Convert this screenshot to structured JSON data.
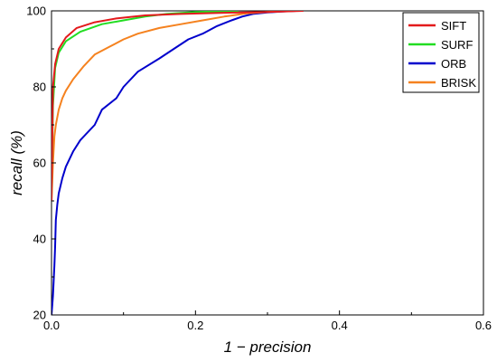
{
  "chart_data": {
    "type": "line",
    "title": "",
    "xlabel": "1 − precision",
    "ylabel": "recall (%)",
    "xlim": [
      0,
      0.6
    ],
    "ylim": [
      20,
      100
    ],
    "xticks": [
      0,
      0.2,
      0.4,
      0.6
    ],
    "xtick_labels": [
      "0.0",
      "0.2",
      "0.4",
      "0.6"
    ],
    "yticks": [
      20,
      40,
      60,
      80,
      100
    ],
    "ytick_labels": [
      "20",
      "40",
      "60",
      "80",
      "100"
    ],
    "grid": false,
    "legend_position": "top-right",
    "series": [
      {
        "name": "SIFT",
        "color": "#e31a1c",
        "x": [
          0,
          0.002,
          0.005,
          0.01,
          0.02,
          0.035,
          0.06,
          0.09,
          0.13,
          0.18,
          0.24,
          0.3,
          0.35
        ],
        "y": [
          50,
          80,
          86,
          90,
          93,
          95.5,
          97,
          98,
          98.8,
          99.2,
          99.5,
          99.7,
          100
        ]
      },
      {
        "name": "SURF",
        "color": "#22dd22",
        "x": [
          0,
          0.002,
          0.005,
          0.01,
          0.02,
          0.04,
          0.07,
          0.1,
          0.13,
          0.16,
          0.2,
          0.26
        ],
        "y": [
          50,
          75,
          85,
          89,
          92,
          94.5,
          96.5,
          97.5,
          98.5,
          99.2,
          99.7,
          100
        ]
      },
      {
        "name": "ORB",
        "color": "#0000cc",
        "x": [
          0,
          0.002,
          0.003,
          0.004,
          0.005,
          0.006,
          0.008,
          0.01,
          0.015,
          0.02,
          0.03,
          0.04,
          0.06,
          0.07,
          0.09,
          0.1,
          0.12,
          0.15,
          0.17,
          0.19,
          0.21,
          0.23,
          0.25,
          0.265,
          0.28,
          0.3,
          0.32,
          0.34
        ],
        "y": [
          20,
          25,
          29,
          33,
          38,
          45,
          49,
          52,
          56,
          59,
          63,
          66,
          70,
          74,
          77,
          80,
          84,
          87.5,
          90,
          92.5,
          94,
          96,
          97.5,
          98.5,
          99.2,
          99.6,
          99.8,
          100
        ]
      },
      {
        "name": "BRISK",
        "color": "#f5821f",
        "x": [
          0,
          0.002,
          0.004,
          0.006,
          0.01,
          0.015,
          0.02,
          0.03,
          0.045,
          0.06,
          0.08,
          0.1,
          0.12,
          0.15,
          0.18,
          0.21,
          0.24,
          0.27,
          0.3,
          0.33
        ],
        "y": [
          50,
          60,
          67,
          70,
          74,
          77,
          79,
          82,
          85.5,
          88.5,
          90.5,
          92.5,
          94,
          95.5,
          96.5,
          97.5,
          98.5,
          99.3,
          99.7,
          100
        ]
      }
    ]
  }
}
